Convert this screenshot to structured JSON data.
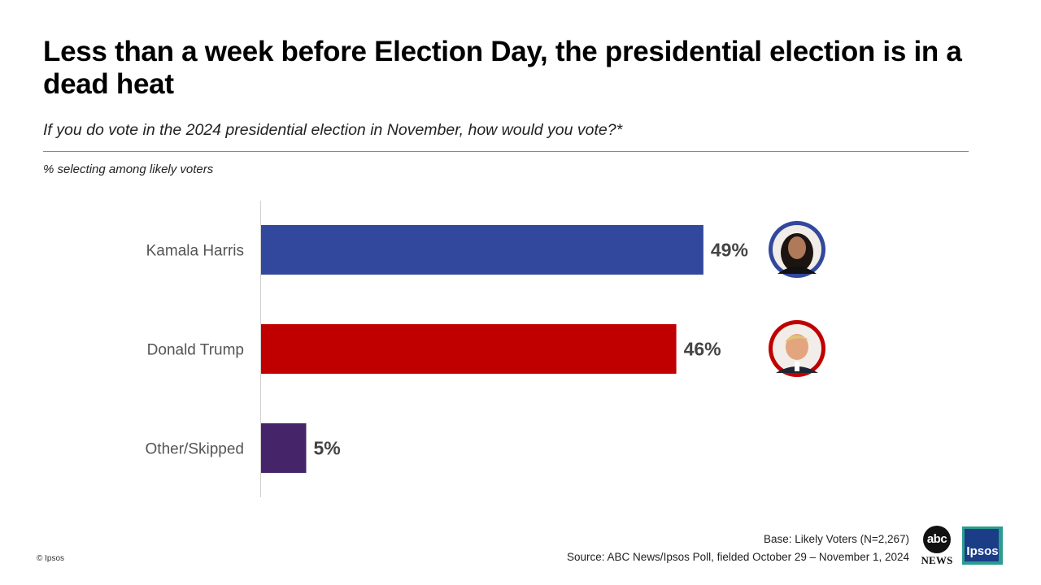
{
  "chart_data": {
    "type": "bar",
    "orientation": "horizontal",
    "title": "Less than a week before Election Day, the presidential election is in a dead heat",
    "subtitle": "If you do vote in the 2024 presidential election in November, how would you vote?*",
    "note": "% selecting among likely voters",
    "categories": [
      "Kamala Harris",
      "Donald Trump",
      "Other/Skipped"
    ],
    "values": [
      49,
      46,
      5
    ],
    "value_labels": [
      "49%",
      "46%",
      "5%"
    ],
    "colors": [
      "#32489d",
      "#c00000",
      "#45246a"
    ],
    "xlim": [
      0,
      100
    ],
    "xlabel": "",
    "ylabel": "",
    "grid": false,
    "legend": "none",
    "portraits": [
      {
        "name": "Kamala Harris",
        "ring_color": "#32489d"
      },
      {
        "name": "Donald Trump",
        "ring_color": "#c00000"
      }
    ]
  },
  "footer": {
    "base": "Base: Likely Voters (N=2,267)",
    "source": "Source: ABC News/Ipsos Poll, fielded October 29 – November 1, 2024",
    "copyright": "© Ipsos"
  },
  "logos": {
    "abc_top": "abc",
    "abc_bottom": "NEWS",
    "ipsos": "Ipsos"
  }
}
